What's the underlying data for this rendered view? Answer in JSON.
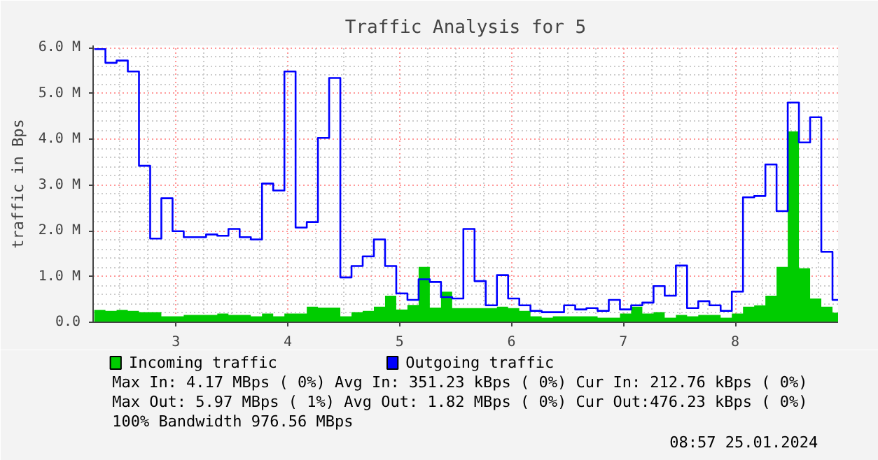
{
  "chart_data": {
    "type": "step",
    "title": "Traffic Analysis for 5",
    "ylabel": "traffic in Bps",
    "x": [
      2.27,
      2.37,
      2.47,
      2.57,
      2.67,
      2.77,
      2.87,
      2.97,
      3.07,
      3.17,
      3.27,
      3.37,
      3.47,
      3.57,
      3.67,
      3.77,
      3.87,
      3.97,
      4.07,
      4.17,
      4.27,
      4.37,
      4.47,
      4.57,
      4.67,
      4.77,
      4.87,
      4.97,
      5.07,
      5.17,
      5.27,
      5.37,
      5.47,
      5.57,
      5.67,
      5.77,
      5.87,
      5.97,
      6.07,
      6.17,
      6.27,
      6.37,
      6.47,
      6.57,
      6.67,
      6.77,
      6.87,
      6.97,
      7.07,
      7.17,
      7.27,
      7.37,
      7.47,
      7.57,
      7.67,
      7.77,
      7.87,
      7.97,
      8.07,
      8.17,
      8.27,
      8.37,
      8.47,
      8.57,
      8.67,
      8.77,
      8.87
    ],
    "series": [
      {
        "name": "Incoming traffic",
        "type": "area",
        "color": "#00cc00",
        "values": [
          0.27,
          0.25,
          0.27,
          0.25,
          0.22,
          0.22,
          0.13,
          0.13,
          0.16,
          0.16,
          0.16,
          0.19,
          0.16,
          0.16,
          0.13,
          0.19,
          0.13,
          0.19,
          0.19,
          0.34,
          0.32,
          0.32,
          0.13,
          0.22,
          0.25,
          0.34,
          0.58,
          0.28,
          0.38,
          1.21,
          0.32,
          0.67,
          0.31,
          0.31,
          0.31,
          0.31,
          0.34,
          0.31,
          0.25,
          0.13,
          0.1,
          0.13,
          0.13,
          0.13,
          0.13,
          0.1,
          0.1,
          0.19,
          0.34,
          0.19,
          0.22,
          0.1,
          0.16,
          0.13,
          0.16,
          0.16,
          0.1,
          0.19,
          0.34,
          0.37,
          0.58,
          1.21,
          4.17,
          1.18,
          0.52,
          0.34,
          0.21
        ]
      },
      {
        "name": "Outgoing traffic",
        "color": "#0000ff",
        "values": [
          5.97,
          5.67,
          5.72,
          5.48,
          3.42,
          1.83,
          2.71,
          1.99,
          1.86,
          1.86,
          1.92,
          1.89,
          2.04,
          1.86,
          1.81,
          3.03,
          2.88,
          5.48,
          2.07,
          2.19,
          4.03,
          5.34,
          0.98,
          1.23,
          1.44,
          1.81,
          1.23,
          0.63,
          0.49,
          0.94,
          0.88,
          0.55,
          0.52,
          2.04,
          0.9,
          0.37,
          1.03,
          0.52,
          0.37,
          0.25,
          0.22,
          0.22,
          0.37,
          0.28,
          0.31,
          0.25,
          0.49,
          0.28,
          0.37,
          0.43,
          0.79,
          0.58,
          1.24,
          0.31,
          0.46,
          0.37,
          0.25,
          0.67,
          2.73,
          2.76,
          3.45,
          2.43,
          4.8,
          3.93,
          4.48,
          1.54,
          0.49
        ]
      }
    ],
    "xlim": [
      2.26,
      8.92
    ],
    "xticks": [
      3,
      4,
      5,
      6,
      7,
      8
    ],
    "ylim": [
      0,
      6.05
    ],
    "yticks": [
      {
        "value": 0,
        "label": "0.0"
      },
      {
        "value": 1,
        "label": "1.0 M"
      },
      {
        "value": 2,
        "label": "2.0 M"
      },
      {
        "value": 3,
        "label": "3.0 M"
      },
      {
        "value": 4,
        "label": "4.0 M"
      },
      {
        "value": 5,
        "label": "5.0 M"
      },
      {
        "value": 6,
        "label": "6.0 M"
      }
    ],
    "grid": true,
    "legend": "bottom left",
    "annotations": [
      "Max In:   4.17 MBps ( 0%)  Avg In: 351.23 kBps ( 0%)  Cur In: 212.76 kBps ( 0%)",
      "Max Out:  5.97 MBps ( 1%)  Avg Out:  1.82 MBps ( 0%)  Cur Out:476.23 kBps ( 0%)",
      "100% Bandwidth 976.56 MBps",
      "08:57 25.01.2024"
    ]
  }
}
